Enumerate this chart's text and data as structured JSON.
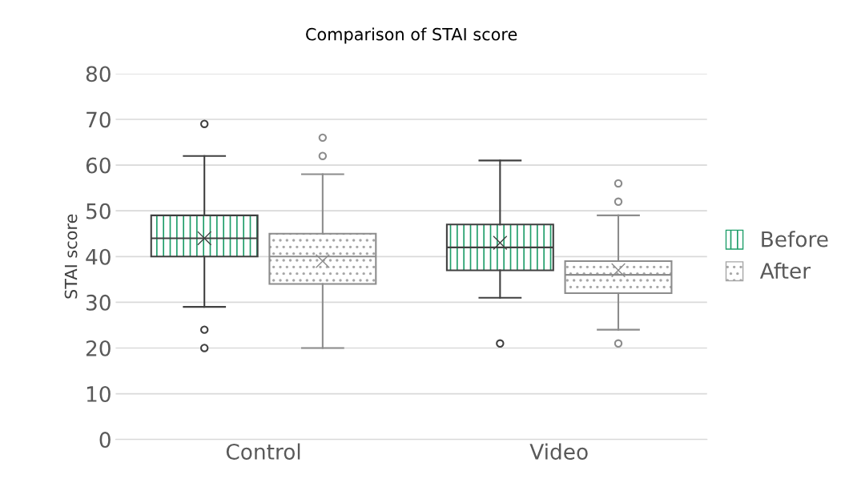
{
  "chart_data": {
    "type": "box",
    "title": "Comparison of STAI score",
    "ylabel": "STAI score",
    "categories": [
      "Control",
      "Video"
    ],
    "series": [
      {
        "name": "Before",
        "color": "#1f9e6a",
        "boxes": [
          {
            "low": 29,
            "q1": 40,
            "median": 44,
            "q3": 49,
            "high": 62,
            "mean": 44,
            "outliers": [
              69,
              24,
              20
            ]
          },
          {
            "low": 31,
            "q1": 37,
            "median": 42,
            "q3": 47,
            "high": 61,
            "mean": 43,
            "outliers": [
              21
            ]
          }
        ]
      },
      {
        "name": "After",
        "color": "#a6a6a6",
        "boxes": [
          {
            "low": 20,
            "q1": 34,
            "median": 40,
            "q3": 45,
            "high": 58,
            "mean": 39,
            "outliers": [
              66,
              62
            ]
          },
          {
            "low": 24,
            "q1": 32,
            "median": 36,
            "q3": 39,
            "high": 49,
            "mean": 37,
            "outliers": [
              56,
              52,
              21
            ]
          }
        ]
      }
    ],
    "ylim": [
      0,
      80
    ],
    "yticks": [
      0,
      10,
      20,
      30,
      40,
      50,
      60,
      70,
      80
    ],
    "grid": "y",
    "legend": "right"
  }
}
